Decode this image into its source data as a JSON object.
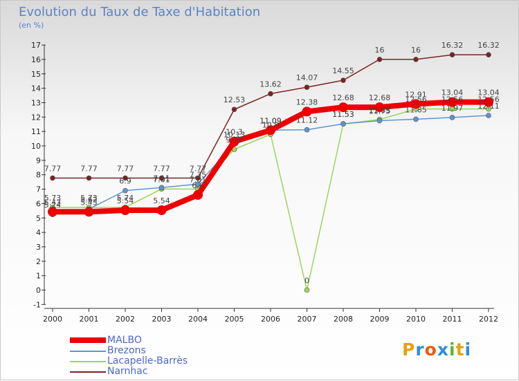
{
  "header": {
    "title": "Evolution du Taux de Taxe d'Habitation",
    "subtitle": "(en %)"
  },
  "logo": {
    "text": "Proxiti",
    "colors": [
      "#e8a012",
      "#2e8fd8",
      "#e85a12",
      "#2e8fd8",
      "#59b530",
      "#e8a012",
      "#2e8fd8"
    ]
  },
  "chart_data": {
    "type": "line",
    "title": "Evolution du Taux de Taxe d'Habitation",
    "ylabel": "(en %)",
    "xlabel": "",
    "x": [
      "2000",
      "2001",
      "2002",
      "2003",
      "2004",
      "2005",
      "2006",
      "2007",
      "2008",
      "2009",
      "2010",
      "2011",
      "2012"
    ],
    "ylim": [
      -1,
      17
    ],
    "yticks": [
      "-1",
      "0",
      "1",
      "2",
      "3",
      "4",
      "5",
      "6",
      "7",
      "8",
      "9",
      "10",
      "11",
      "12",
      "13",
      "14",
      "15",
      "16",
      "17"
    ],
    "grid": false,
    "legend_position": "bottom-left",
    "series": [
      {
        "name": "Narnhac",
        "color": "#7b2222",
        "values": [
          7.77,
          7.77,
          7.77,
          7.77,
          7.77,
          12.53,
          13.62,
          14.07,
          14.55,
          16,
          16,
          16.32,
          16.32
        ],
        "labels": [
          "7.77",
          "7.77",
          "7.77",
          "7.77",
          "7.77",
          "12.53",
          "13.62",
          "14.07",
          "14.55",
          "16",
          "16",
          "16.32",
          "16.32"
        ]
      },
      {
        "name": "Lacapelle-Barrès",
        "color": "#9ad65a",
        "values": [
          5.73,
          5.73,
          5.74,
          7.01,
          7.01,
          9.76,
          10.8,
          0,
          11.53,
          11.83,
          12.56,
          12.56,
          12.56
        ],
        "labels": [
          "5.73",
          "5.73",
          "5.74",
          "7.01",
          "7.01",
          "9.76",
          "10.8",
          "0",
          "11.53",
          "11.83",
          "12.56",
          "12.56",
          "12.56"
        ]
      },
      {
        "name": "Brezons",
        "color": "#5b95d0",
        "values": [
          5.24,
          5.62,
          6.9,
          7.11,
          7.35,
          10.13,
          11.09,
          11.12,
          11.53,
          11.75,
          11.85,
          11.97,
          12.11
        ],
        "labels": [
          "5.24",
          "5.62",
          "6.9",
          "7.11",
          "7.35",
          "10.13",
          "11.09",
          "11.12",
          "11.53",
          "11.75",
          "11.85",
          "11.97",
          "12.11"
        ]
      },
      {
        "name": "MALBO",
        "color": "#ee0000",
        "values": [
          5.43,
          5.43,
          5.54,
          5.54,
          6.6,
          10.3,
          11.09,
          12.38,
          12.68,
          12.68,
          12.91,
          13.04,
          13.04
        ],
        "labels": [
          "5.43",
          "5.43",
          "5.54",
          "5.54",
          "6.6",
          "10.3",
          "11.09",
          "12.38",
          "12.68",
          "12.68",
          "12.91",
          "13.04",
          "13.04"
        ]
      }
    ],
    "legend": [
      "MALBO",
      "Brezons",
      "Lacapelle-Barrès",
      "Narnhac"
    ]
  }
}
